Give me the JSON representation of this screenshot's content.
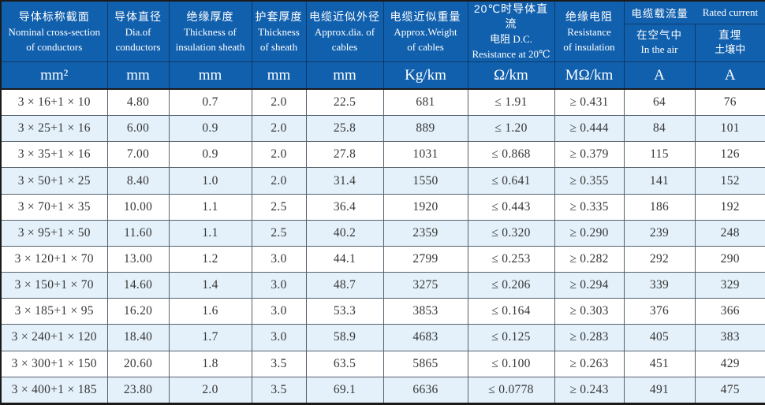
{
  "table": {
    "title": "cable-specification-table",
    "columns": [
      {
        "lines": [
          "导体标称截面",
          "Nominal cross-section",
          "of conductors"
        ]
      },
      {
        "lines": [
          "导体直径",
          "Dia.of",
          "conductors"
        ]
      },
      {
        "lines": [
          "绝缘厚度",
          "Thickness of",
          "insulation sheath"
        ]
      },
      {
        "lines": [
          "护套厚度",
          "Thickness",
          "of sheath"
        ]
      },
      {
        "lines": [
          "电缆近似外径",
          "Approx.dia. of",
          "cables"
        ]
      },
      {
        "lines": [
          "电缆近似重量",
          "Approx.Weight",
          "of cables"
        ]
      },
      {
        "lines": [
          "20℃时导体直流",
          "电阻 D.C.",
          "Resistance at 20℃"
        ]
      },
      {
        "lines": [
          "绝缘电阻",
          "Resistance",
          "of insulation"
        ]
      }
    ],
    "rated_current_group": {
      "cn": "电缆载流量",
      "en": "Rated current"
    },
    "sub_columns": [
      {
        "lines": [
          "在空气中",
          "In the air"
        ]
      },
      {
        "lines": [
          "直埋",
          "土壤中"
        ]
      }
    ],
    "units": [
      "mm²",
      "mm",
      "mm",
      "mm",
      "mm",
      "Kg/km",
      "Ω/km",
      "MΩ/km",
      "A",
      "A"
    ],
    "rows": [
      [
        "3 × 16+1 × 10",
        "4.80",
        "0.7",
        "2.0",
        "22.5",
        "681",
        "≤ 1.91",
        "≥ 0.431",
        "64",
        "76"
      ],
      [
        "3 × 25+1 × 16",
        "6.00",
        "0.9",
        "2.0",
        "25.8",
        "889",
        "≤ 1.20",
        "≥ 0.444",
        "84",
        "101"
      ],
      [
        "3 × 35+1 × 16",
        "7.00",
        "0.9",
        "2.0",
        "27.8",
        "1031",
        "≤ 0.868",
        "≥ 0.379",
        "115",
        "126"
      ],
      [
        "3 × 50+1 × 25",
        "8.40",
        "1.0",
        "2.0",
        "31.4",
        "1550",
        "≤ 0.641",
        "≥ 0.355",
        "141",
        "152"
      ],
      [
        "3 × 70+1 × 35",
        "10.00",
        "1.1",
        "2.5",
        "36.4",
        "1920",
        "≤ 0.443",
        "≥ 0.335",
        "186",
        "192"
      ],
      [
        "3 × 95+1 × 50",
        "11.60",
        "1.1",
        "2.5",
        "40.2",
        "2359",
        "≤ 0.320",
        "≥ 0.290",
        "239",
        "248"
      ],
      [
        "3 × 120+1 × 70",
        "13.00",
        "1.2",
        "3.0",
        "44.1",
        "2799",
        "≤ 0.253",
        "≥ 0.282",
        "292",
        "290"
      ],
      [
        "3 × 150+1 × 70",
        "14.60",
        "1.4",
        "3.0",
        "48.7",
        "3275",
        "≤ 0.206",
        "≥ 0.294",
        "339",
        "329"
      ],
      [
        "3 × 185+1 × 95",
        "16.20",
        "1.6",
        "3.0",
        "53.3",
        "3853",
        "≤ 0.164",
        "≥ 0.303",
        "376",
        "366"
      ],
      [
        "3 × 240+1 × 120",
        "18.40",
        "1.7",
        "3.0",
        "58.9",
        "4683",
        "≤ 0.125",
        "≥ 0.283",
        "405",
        "383"
      ],
      [
        "3 × 300+1 × 150",
        "20.60",
        "1.8",
        "3.5",
        "63.5",
        "5865",
        "≤ 0.100",
        "≥ 0.263",
        "451",
        "429"
      ],
      [
        "3 × 400+1 × 185",
        "23.80",
        "2.0",
        "3.5",
        "69.1",
        "6636",
        "≤ 0.0778",
        "≥ 0.243",
        "491",
        "475"
      ]
    ],
    "colors": {
      "header_background": "#1160ae",
      "header_text": "#ffffff",
      "row_alternate": "#e4f1fa",
      "row_base": "#ffffff",
      "grid_line": "#55616d",
      "outer_border": "#1a1a1a"
    }
  }
}
